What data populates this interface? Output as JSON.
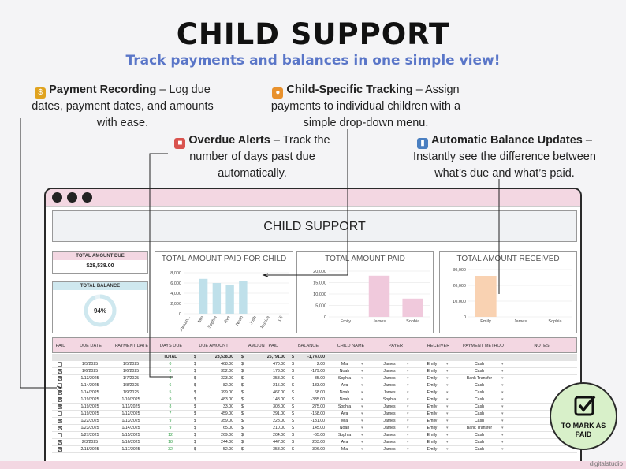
{
  "header": {
    "title": "CHILD SUPPORT",
    "subtitle": "Track payments and balances in one simple view!"
  },
  "features": {
    "payment_recording": {
      "title": "Payment Recording",
      "text_line1": "– Log due",
      "text_line2": "dates, payment dates, and amounts",
      "text_line3": "with ease.",
      "icon": "moneybag-icon"
    },
    "child_tracking": {
      "title": "Child-Specific Tracking",
      "text_line1": "– Assign",
      "text_line2": "payments to individual children with a",
      "text_line3": "simple drop-down menu.",
      "icon": "family-icon"
    },
    "overdue_alerts": {
      "title": "Overdue Alerts",
      "text_line1": "– Track the",
      "text_line2": "number of days past due",
      "text_line3": "automatically.",
      "icon": "calendar-icon"
    },
    "balance_updates": {
      "title": "Automatic Balance Updates",
      "text_line1": "–",
      "text_line2": "Instantly see the difference between",
      "text_line3": "what’s due and what’s paid.",
      "icon": "bar-chart-icon"
    }
  },
  "sheet": {
    "title": "CHILD SUPPORT",
    "kpi_total_due": {
      "label": "TOTAL AMOUNT DUE",
      "value": "$28,538.00"
    },
    "kpi_total_balance": {
      "label": "TOTAL BALANCE",
      "value": "94%",
      "ring_fraction": 0.94
    }
  },
  "charts": {
    "paid_by_child": {
      "title": "TOTAL AMOUNT PAID FOR CHILD",
      "ticks": [
        "8,000",
        "6,000",
        "4,000",
        "2,000",
        "0"
      ]
    },
    "amount_paid": {
      "title": "TOTAL AMOUNT PAID",
      "ticks": [
        "20,000",
        "15,000",
        "10,000",
        "5,000",
        "0"
      ]
    },
    "amount_received": {
      "title": "TOTAL AMOUNT RECEIVED",
      "ticks": [
        "30,000",
        "20,000",
        "10,000",
        "0"
      ]
    }
  },
  "chart_data": [
    {
      "type": "bar",
      "title": "TOTAL AMOUNT PAID FOR CHILD",
      "categories": [
        "Alexan...",
        "Mia",
        "Sophia",
        "Ava",
        "Noah",
        "Josh",
        "Jessica",
        "Lili"
      ],
      "values": [
        0,
        6800,
        6000,
        5700,
        6400,
        0,
        0,
        0
      ],
      "ylim": [
        0,
        8000
      ],
      "color": "#bfe0ea"
    },
    {
      "type": "bar",
      "title": "TOTAL AMOUNT PAID",
      "categories": [
        "Emily",
        "James",
        "Sophia"
      ],
      "values": [
        0,
        18000,
        8000
      ],
      "ylim": [
        0,
        20000
      ],
      "color": "#f0c9dc"
    },
    {
      "type": "bar",
      "title": "TOTAL AMOUNT RECEIVED",
      "categories": [
        "Emily",
        "James",
        "Sophia"
      ],
      "values": [
        26000,
        0,
        0
      ],
      "ylim": [
        0,
        30000
      ],
      "color": "#f9d2b2"
    }
  ],
  "table": {
    "headers": [
      "PAID",
      "DUE DATE",
      "PAYMENT DATE",
      "DAYS DUE",
      "DUE AMOUNT",
      "AMOUNT PAID",
      "BALANCE",
      "CHILD NAME",
      "PAYER",
      "RECEIVER",
      "PAYMENT METHOD",
      "NOTES"
    ],
    "total": {
      "label": "TOTAL",
      "currency": "$",
      "due": "28,538.00",
      "paid": "26,791.00",
      "balance": "-1,747.00"
    },
    "rows": [
      {
        "paid": false,
        "due": "1/5/2025",
        "pay": "1/5/2025",
        "days": "0",
        "amt": "468.00",
        "amtpaid": "470.00",
        "bal": "2.00",
        "child": "Mia",
        "payer": "James",
        "recv": "Emily",
        "method": "Cash"
      },
      {
        "paid": true,
        "due": "1/6/2025",
        "pay": "1/6/2025",
        "days": "0",
        "amt": "352.00",
        "amtpaid": "173.00",
        "bal": "-179.00",
        "child": "Noah",
        "payer": "James",
        "recv": "Emily",
        "method": "Cash"
      },
      {
        "paid": true,
        "due": "1/13/2025",
        "pay": "1/7/2025",
        "days": "6",
        "amt": "323.00",
        "amtpaid": "358.00",
        "bal": "35.00",
        "child": "Sophia",
        "payer": "James",
        "recv": "Emily",
        "method": "Bank Transfer"
      },
      {
        "paid": false,
        "due": "1/14/2025",
        "pay": "1/8/2025",
        "days": "6",
        "amt": "82.00",
        "amtpaid": "215.00",
        "bal": "133.00",
        "child": "Ava",
        "payer": "James",
        "recv": "Emily",
        "method": "Cash"
      },
      {
        "paid": true,
        "due": "1/14/2025",
        "pay": "1/9/2025",
        "days": "5",
        "amt": "399.00",
        "amtpaid": "467.00",
        "bal": "68.00",
        "child": "Noah",
        "payer": "James",
        "recv": "Emily",
        "method": "Cash"
      },
      {
        "paid": true,
        "due": "1/19/2025",
        "pay": "1/10/2025",
        "days": "9",
        "amt": "483.00",
        "amtpaid": "148.00",
        "bal": "-335.00",
        "child": "Noah",
        "payer": "Sophia",
        "recv": "Emily",
        "method": "Cash"
      },
      {
        "paid": true,
        "due": "1/19/2025",
        "pay": "1/11/2025",
        "days": "8",
        "amt": "33.00",
        "amtpaid": "308.00",
        "bal": "275.00",
        "child": "Sophia",
        "payer": "James",
        "recv": "Emily",
        "method": "Cash"
      },
      {
        "paid": false,
        "due": "1/19/2025",
        "pay": "1/12/2025",
        "days": "7",
        "amt": "459.00",
        "amtpaid": "291.00",
        "bal": "-168.00",
        "child": "Ava",
        "payer": "James",
        "recv": "Emily",
        "method": "Cash"
      },
      {
        "paid": true,
        "due": "1/22/2025",
        "pay": "1/13/2025",
        "days": "9",
        "amt": "359.00",
        "amtpaid": "228.00",
        "bal": "-131.00",
        "child": "Mia",
        "payer": "James",
        "recv": "Emily",
        "method": "Cash"
      },
      {
        "paid": true,
        "due": "1/23/2025",
        "pay": "1/14/2025",
        "days": "9",
        "amt": "65.00",
        "amtpaid": "210.00",
        "bal": "145.00",
        "child": "Noah",
        "payer": "James",
        "recv": "Emily",
        "method": "Bank Transfer"
      },
      {
        "paid": false,
        "due": "1/27/2025",
        "pay": "1/15/2025",
        "days": "12",
        "amt": "269.00",
        "amtpaid": "204.00",
        "bal": "-65.00",
        "child": "Sophia",
        "payer": "James",
        "recv": "Emily",
        "method": "Cash"
      },
      {
        "paid": true,
        "due": "2/3/2025",
        "pay": "1/16/2025",
        "days": "18",
        "amt": "244.00",
        "amtpaid": "447.00",
        "bal": "203.00",
        "child": "Ava",
        "payer": "James",
        "recv": "Emily",
        "method": "Cash"
      },
      {
        "paid": true,
        "due": "2/18/2025",
        "pay": "1/17/2025",
        "days": "32",
        "amt": "52.00",
        "amtpaid": "358.00",
        "bal": "306.00",
        "child": "Mia",
        "payer": "James",
        "recv": "Emily",
        "method": "Cash"
      }
    ]
  },
  "badge": {
    "line1": "TO MARK AS",
    "line2": "PAID"
  },
  "brand": "digitalstudio"
}
